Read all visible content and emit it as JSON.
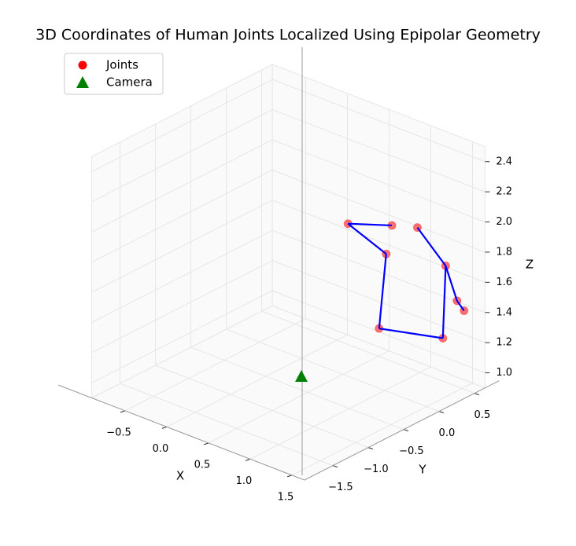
{
  "chart_data": {
    "type": "scatter3d",
    "title": "3D Coordinates of Human Joints Localized Using Epipolar Geometry",
    "xlabel": "X",
    "ylabel": "Y",
    "zlabel": "Z",
    "xlim": [
      -0.9,
      1.65
    ],
    "ylim": [
      -1.9,
      0.65
    ],
    "zlim": [
      0.9,
      2.5
    ],
    "xticks": [
      {
        "value": -0.5,
        "label": "−0.5"
      },
      {
        "value": 0,
        "label": "0.0"
      },
      0.5,
      {
        "value": 1,
        "label": "1.0"
      },
      1.5
    ],
    "yticks": [
      {
        "value": -1.5,
        "label": "−1.5"
      },
      {
        "value": -1,
        "label": "−1.0"
      },
      {
        "value": -0.5,
        "label": "−0.5"
      },
      {
        "value": 0,
        "label": "0.0"
      },
      0.5
    ],
    "zticks": [
      {
        "value": 1,
        "label": "1.0"
      },
      1.2,
      1.4,
      1.6,
      1.8,
      {
        "value": 2,
        "label": "2.0"
      },
      2.2,
      2.4
    ],
    "grid": true,
    "legend": "upper left",
    "series": [
      {
        "name": "Joints",
        "color": "red",
        "marker": "circle",
        "x": [
          1,
          1,
          1,
          1,
          1,
          1,
          1,
          1,
          1
        ],
        "y": [
          -0.52,
          0.1,
          0.46,
          0.02,
          0.86,
          1.02,
          1.12,
          -0.08,
          0.82
        ],
        "z": [
          2.13,
          1.97,
          1.87,
          1.8,
          1.52,
          1.25,
          1.16,
          1.33,
          1.05
        ]
      },
      {
        "name": "Camera",
        "color": "green",
        "marker": "triangle",
        "x": [
          0
        ],
        "y": [
          0
        ],
        "z": [
          0.78
        ]
      }
    ],
    "edges": [
      [
        0,
        1
      ],
      [
        0,
        3
      ],
      [
        2,
        4
      ],
      [
        4,
        5
      ],
      [
        5,
        6
      ],
      [
        3,
        7
      ],
      [
        7,
        8
      ],
      [
        8,
        4
      ]
    ],
    "edge_color": "blue"
  }
}
